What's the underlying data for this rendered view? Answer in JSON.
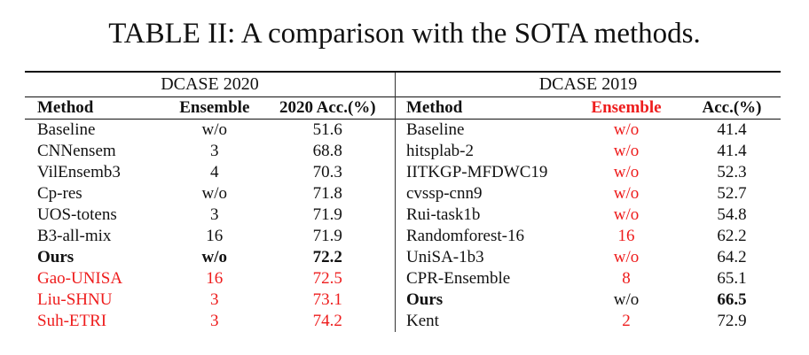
{
  "caption": "TABLE II: A comparison with the SOTA methods.",
  "colors": {
    "highlight": "#ee1c1c",
    "text": "#111111"
  },
  "left": {
    "title": "DCASE 2020",
    "headers": {
      "method": "Method",
      "ensemble": "Ensemble",
      "acc": "2020 Acc.(%)"
    },
    "rows": [
      {
        "method": "Baseline",
        "ensemble": "w/o",
        "acc": "51.6",
        "style": "normal"
      },
      {
        "method": "CNNensem",
        "ensemble": "3",
        "acc": "68.8",
        "style": "normal"
      },
      {
        "method": "VilEnsemb3",
        "ensemble": "4",
        "acc": "70.3",
        "style": "normal"
      },
      {
        "method": "Cp-res",
        "ensemble": "w/o",
        "acc": "71.8",
        "style": "normal"
      },
      {
        "method": "UOS-totens",
        "ensemble": "3",
        "acc": "71.9",
        "style": "normal"
      },
      {
        "method": "B3-all-mix",
        "ensemble": "16",
        "acc": "71.9",
        "style": "normal"
      },
      {
        "method": "Ours",
        "ensemble": "w/o",
        "acc": "72.2",
        "style": "bold"
      },
      {
        "method": "Gao-UNISA",
        "ensemble": "16",
        "acc": "72.5",
        "style": "red"
      },
      {
        "method": "Liu-SHNU",
        "ensemble": "3",
        "acc": "73.1",
        "style": "red"
      },
      {
        "method": "Suh-ETRI",
        "ensemble": "3",
        "acc": "74.2",
        "style": "red"
      }
    ]
  },
  "right": {
    "title": "DCASE 2019",
    "headers": {
      "method": "Method",
      "ensemble": "Ensemble",
      "acc": "Acc.(%)"
    },
    "rows": [
      {
        "method": "Baseline",
        "ensemble": "w/o",
        "acc": "41.4",
        "style": "ens-red"
      },
      {
        "method": "hitsplab-2",
        "ensemble": "w/o",
        "acc": "41.4",
        "style": "ens-red"
      },
      {
        "method": "IITKGP-MFDWC19",
        "ensemble": "w/o",
        "acc": "52.3",
        "style": "ens-red"
      },
      {
        "method": "cvssp-cnn9",
        "ensemble": "w/o",
        "acc": "52.7",
        "style": "ens-red"
      },
      {
        "method": "Rui-task1b",
        "ensemble": "w/o",
        "acc": "54.8",
        "style": "ens-red"
      },
      {
        "method": "Randomforest-16",
        "ensemble": "16",
        "acc": "62.2",
        "style": "ens-red"
      },
      {
        "method": "UniSA-1b3",
        "ensemble": "w/o",
        "acc": "64.2",
        "style": "ens-red"
      },
      {
        "method": "CPR-Ensemble",
        "ensemble": "8",
        "acc": "65.1",
        "style": "ens-red"
      },
      {
        "method": "Ours",
        "ensemble": "w/o",
        "acc": "66.5",
        "style": "ours"
      },
      {
        "method": "Kent",
        "ensemble": "2",
        "acc": "72.9",
        "style": "ens-red"
      }
    ]
  }
}
